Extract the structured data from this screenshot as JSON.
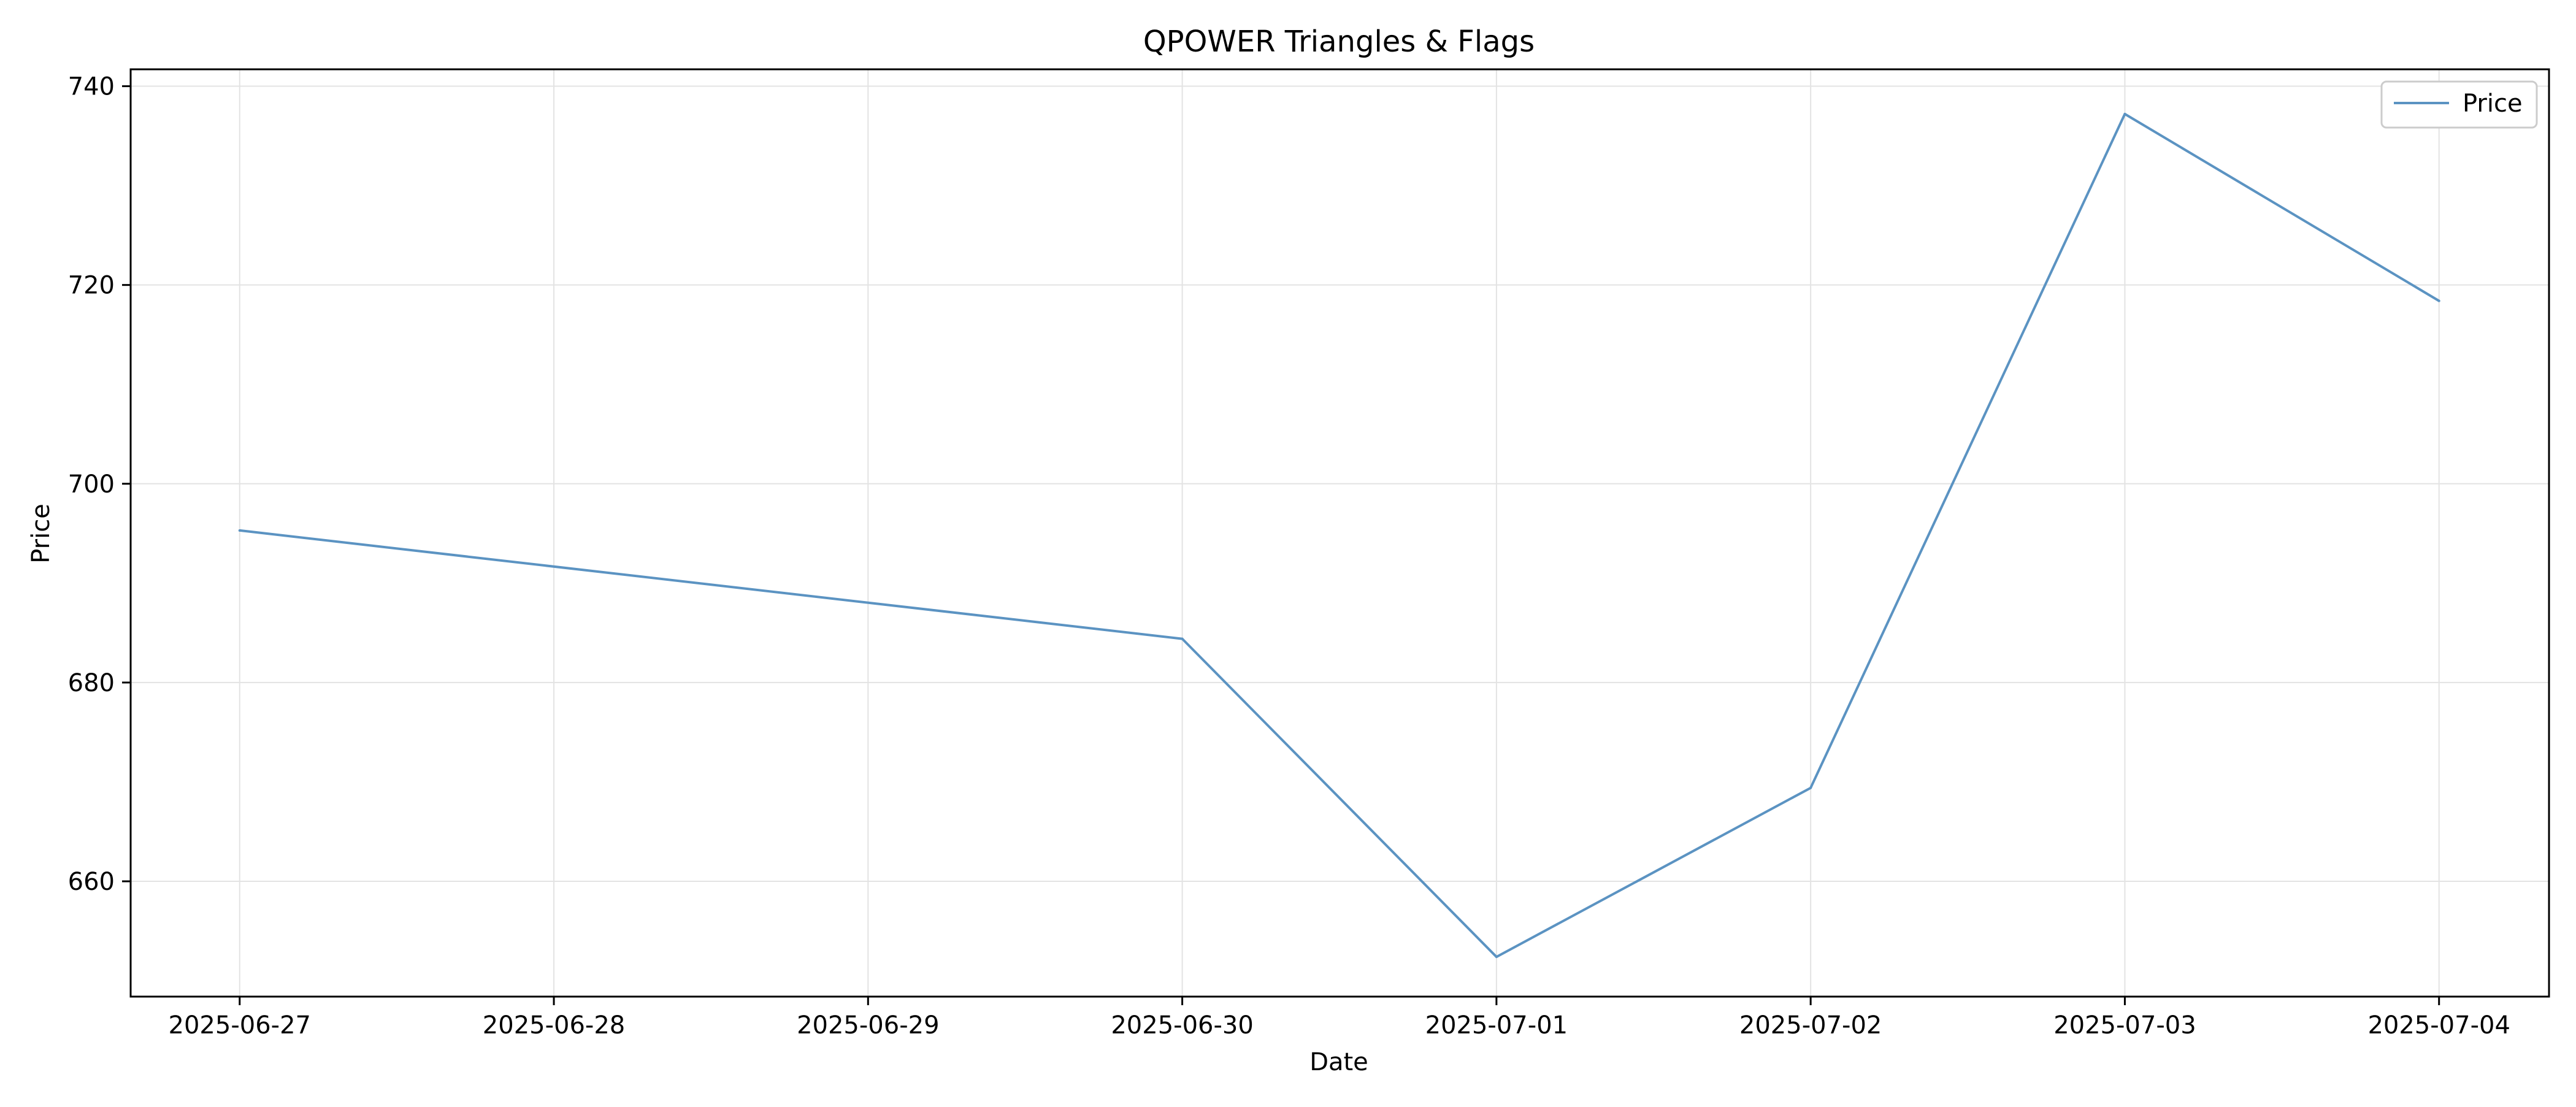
{
  "chart_data": {
    "type": "line",
    "title": "QPOWER Triangles & Flags",
    "xlabel": "Date",
    "ylabel": "Price",
    "x": [
      "2025-06-27",
      "2025-06-30",
      "2025-07-01",
      "2025-07-02",
      "2025-07-03",
      "2025-07-04"
    ],
    "x_ticks": [
      "2025-06-27",
      "2025-06-28",
      "2025-06-29",
      "2025-06-30",
      "2025-07-01",
      "2025-07-02",
      "2025-07-03",
      "2025-07-04"
    ],
    "xlim": [
      "2025-06-26",
      "2025-07-04"
    ],
    "y_ticks": [
      660,
      680,
      700,
      720,
      740
    ],
    "ylim": [
      648.4,
      741.7
    ],
    "series": [
      {
        "name": "Price",
        "color": "#5b93c2",
        "values": [
          695.3,
          684.4,
          652.4,
          669.4,
          737.2,
          718.4
        ]
      }
    ],
    "grid": true,
    "legend": "top-right"
  }
}
